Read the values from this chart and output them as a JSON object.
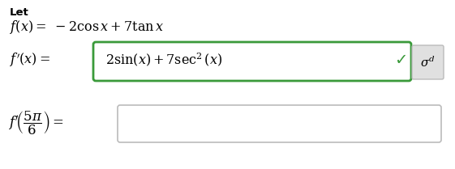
{
  "bg_color": "#ffffff",
  "text_color": "#000000",
  "green_color": "#3a9a3a",
  "box_border_gray": "#bbbbbb",
  "checkmark": "✓",
  "fig_width": 5.61,
  "fig_height": 2.09,
  "dpi": 100
}
